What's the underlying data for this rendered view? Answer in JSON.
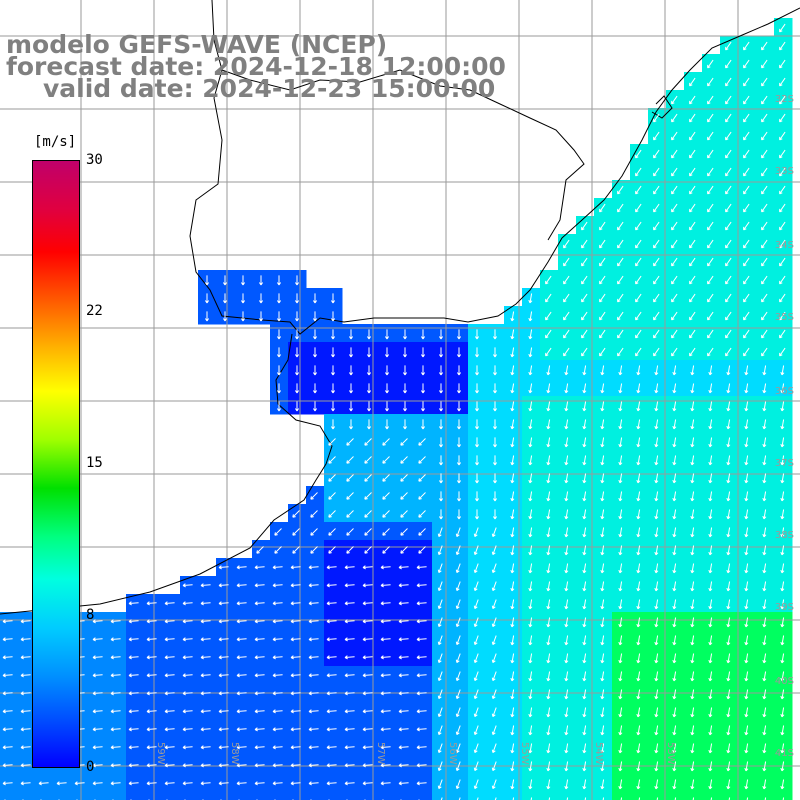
{
  "title": {
    "line1": "modelo GEFS-WAVE (NCEP)",
    "line2": "forecast date: 2024-12-18 12:00:00",
    "line3": "valid date: 2024-12-23 15:00:00"
  },
  "colorbar": {
    "unit": "[m/s]",
    "ticks": [
      "30",
      "22",
      "15",
      "8",
      "0"
    ],
    "tick_values": [
      30,
      22,
      15,
      8,
      0
    ],
    "colors": [
      "#0000ff",
      "#0050ff",
      "#0090ff",
      "#00ccff",
      "#00ffe0",
      "#00ff80",
      "#00e000",
      "#a0ff00",
      "#ffff00",
      "#ffb400",
      "#ff5a00",
      "#ff0000",
      "#e00040",
      "#c0006a"
    ]
  },
  "lat_labels": [
    "32S",
    "33S",
    "34S",
    "35S",
    "36S",
    "37S",
    "38S",
    "39S",
    "40S",
    "41S"
  ],
  "lon_labels": [
    "59W",
    "58W",
    "57W",
    "56W",
    "55W",
    "54W",
    "53W"
  ],
  "field_colors": {
    "deep_blue": "#0018ff",
    "blue": "#0058ff",
    "mid_blue": "#0088ff",
    "light_blue": "#00b4ff",
    "cyan": "#00dcff",
    "aqua": "#00f0e0",
    "green": "#00ff60"
  }
}
